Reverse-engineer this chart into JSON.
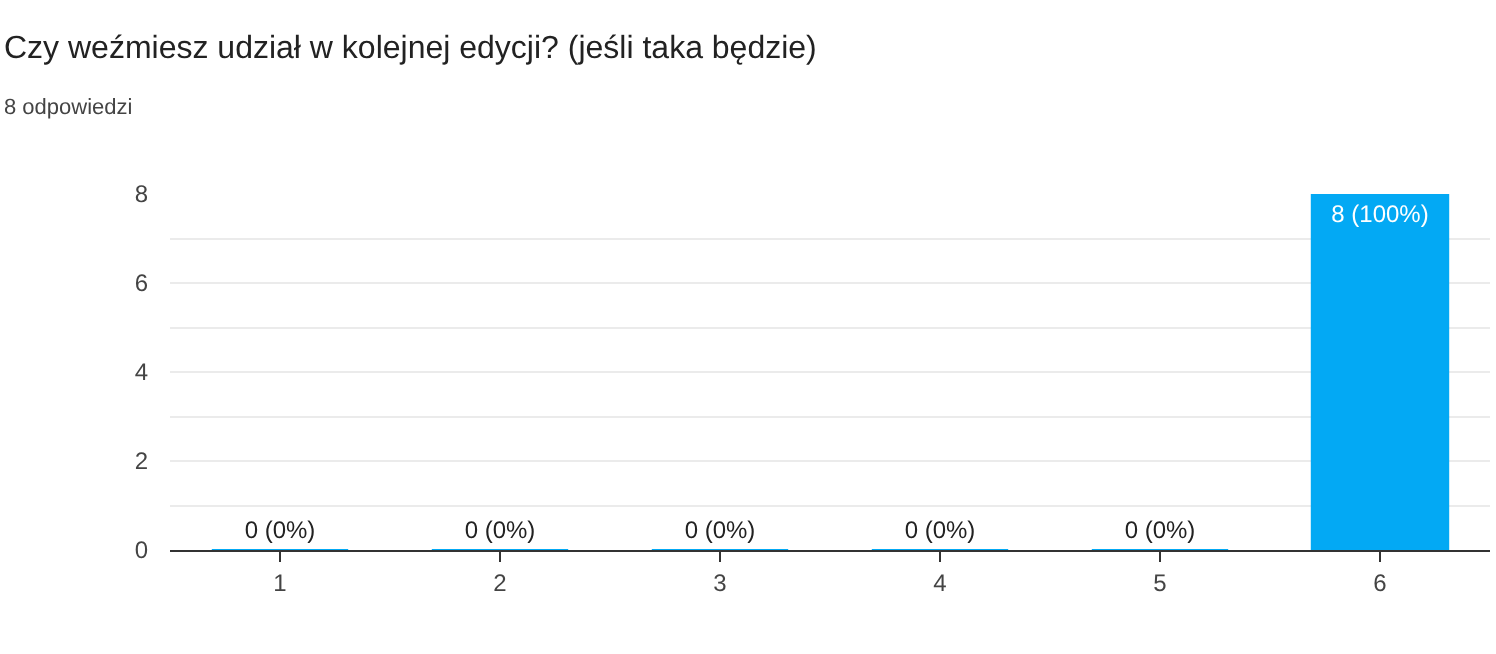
{
  "chart_data": {
    "type": "bar",
    "title": "Czy weźmiesz udział w kolejnej edycji? (jeśli taka będzie)",
    "subtitle": "8 odpowiedzi",
    "categories": [
      "1",
      "2",
      "3",
      "4",
      "5",
      "6"
    ],
    "values": [
      0,
      0,
      0,
      0,
      0,
      8
    ],
    "value_labels": [
      "0 (0%)",
      "0 (0%)",
      "0 (0%)",
      "0 (0%)",
      "0 (0%)",
      "8 (100%)"
    ],
    "color": "#03a9f4",
    "ylim": [
      0,
      8
    ],
    "yticks": [
      0,
      {
        "value": 1,
        "label": null
      },
      2,
      {
        "value": 3,
        "label": null
      },
      4,
      {
        "value": 5,
        "label": null
      },
      6,
      {
        "value": 7,
        "label": null
      },
      8
    ],
    "grid": "y"
  }
}
